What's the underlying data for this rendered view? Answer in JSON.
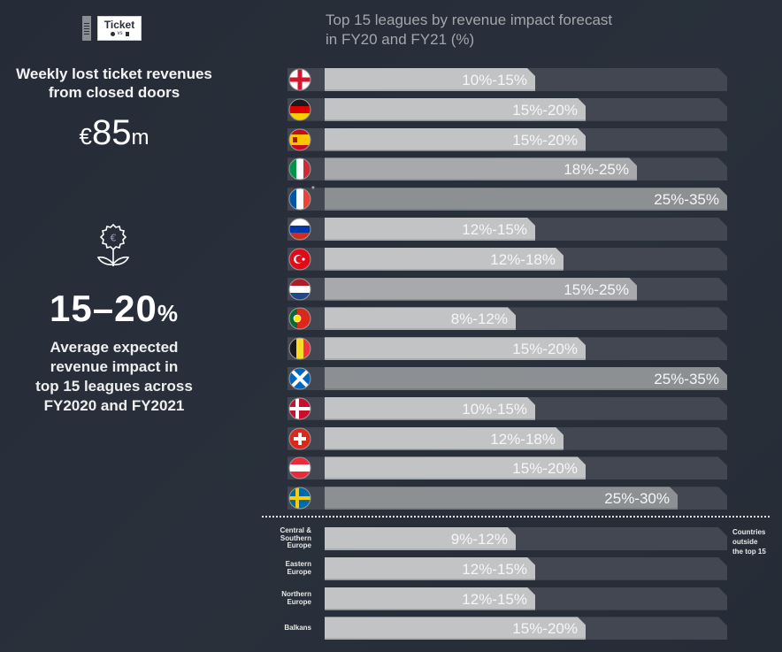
{
  "left_panel": {
    "ticket_icon": {
      "icon": "ticket-icon",
      "title": "Ticket",
      "vs_text": "vs"
    },
    "lost_revenue": {
      "title_line1": "Weekly lost ticket revenues",
      "title_line2": "from closed doors",
      "currency": "€",
      "value": "85",
      "unit": "m"
    },
    "flower_icon": "euro-flower-icon",
    "average_impact": {
      "value": "15–20",
      "unit": "%",
      "desc_line1": "Average expected",
      "desc_line2": "revenue impact in",
      "desc_line3": "top 15 leagues across",
      "desc_line4": "FY2020 and FY2021"
    }
  },
  "chart_data": {
    "type": "bar",
    "orientation": "horizontal",
    "title": "Top 15 leagues by revenue impact forecast in FY20 and FY21 (%)",
    "title_line1": "Top 15 leagues by revenue impact forecast",
    "title_line2": "in FY20 and FY21 (%)",
    "unit": "%",
    "xlim": [
      0,
      35
    ],
    "grid": false,
    "legend": "none",
    "series": [
      {
        "name": "Top 15 leagues",
        "categories": [
          {
            "country": "England",
            "flag": "england-flag-icon",
            "low": 10,
            "high": 15,
            "label": "10%-15%"
          },
          {
            "country": "Germany",
            "flag": "germany-flag-icon",
            "low": 15,
            "high": 20,
            "label": "15%-20%"
          },
          {
            "country": "Spain",
            "flag": "spain-flag-icon",
            "low": 15,
            "high": 20,
            "label": "15%-20%"
          },
          {
            "country": "Italy",
            "flag": "italy-flag-icon",
            "low": 18,
            "high": 25,
            "label": "18%-25%"
          },
          {
            "country": "France",
            "flag": "france-flag-icon",
            "low": 25,
            "high": 35,
            "label": "25%-35%",
            "footnote": "*"
          },
          {
            "country": "Russia",
            "flag": "russia-flag-icon",
            "low": 12,
            "high": 15,
            "label": "12%-15%"
          },
          {
            "country": "Turkey",
            "flag": "turkey-flag-icon",
            "low": 12,
            "high": 18,
            "label": "12%-18%"
          },
          {
            "country": "Netherlands",
            "flag": "netherlands-flag-icon",
            "low": 15,
            "high": 25,
            "label": "15%-25%"
          },
          {
            "country": "Portugal",
            "flag": "portugal-flag-icon",
            "low": 8,
            "high": 12,
            "label": "8%-12%"
          },
          {
            "country": "Belgium",
            "flag": "belgium-flag-icon",
            "low": 15,
            "high": 20,
            "label": "15%-20%"
          },
          {
            "country": "Scotland",
            "flag": "scotland-flag-icon",
            "low": 25,
            "high": 35,
            "label": "25%-35%"
          },
          {
            "country": "Denmark",
            "flag": "denmark-flag-icon",
            "low": 10,
            "high": 15,
            "label": "10%-15%"
          },
          {
            "country": "Switzerland",
            "flag": "switzerland-flag-icon",
            "low": 12,
            "high": 18,
            "label": "12%-18%"
          },
          {
            "country": "Austria",
            "flag": "austria-flag-icon",
            "low": 15,
            "high": 20,
            "label": "15%-20%"
          },
          {
            "country": "Sweden",
            "flag": "sweden-flag-icon",
            "low": 25,
            "high": 30,
            "label": "25%-30%"
          }
        ]
      },
      {
        "name": "Countries outside the top 15",
        "categories": [
          {
            "region": "Central & Southern Europe",
            "lines": [
              "Central &",
              "Southern",
              "Europe"
            ],
            "low": 9,
            "high": 12,
            "label": "9%-12%"
          },
          {
            "region": "Eastern Europe",
            "lines": [
              "Eastern",
              "Europe"
            ],
            "low": 12,
            "high": 15,
            "label": "12%-15%"
          },
          {
            "region": "Northern Europe",
            "lines": [
              "Northern",
              "Europe"
            ],
            "low": 12,
            "high": 15,
            "label": "12%-15%"
          },
          {
            "region": "Balkans",
            "lines": [
              "Balkans"
            ],
            "low": 15,
            "high": 20,
            "label": "15%-20%"
          }
        ]
      }
    ],
    "annotations": [
      "*",
      "Countries outside the top 15"
    ],
    "outside_note_lines": [
      "Countries",
      "outside",
      "the top 15"
    ]
  },
  "colors": {
    "background": "#272d38",
    "track": "#434752",
    "fill_light": "#c2c3c5",
    "fill_mid": "#a7a9ac",
    "fill_dark": "#8c9093",
    "title_text": "#a3a6ab"
  }
}
